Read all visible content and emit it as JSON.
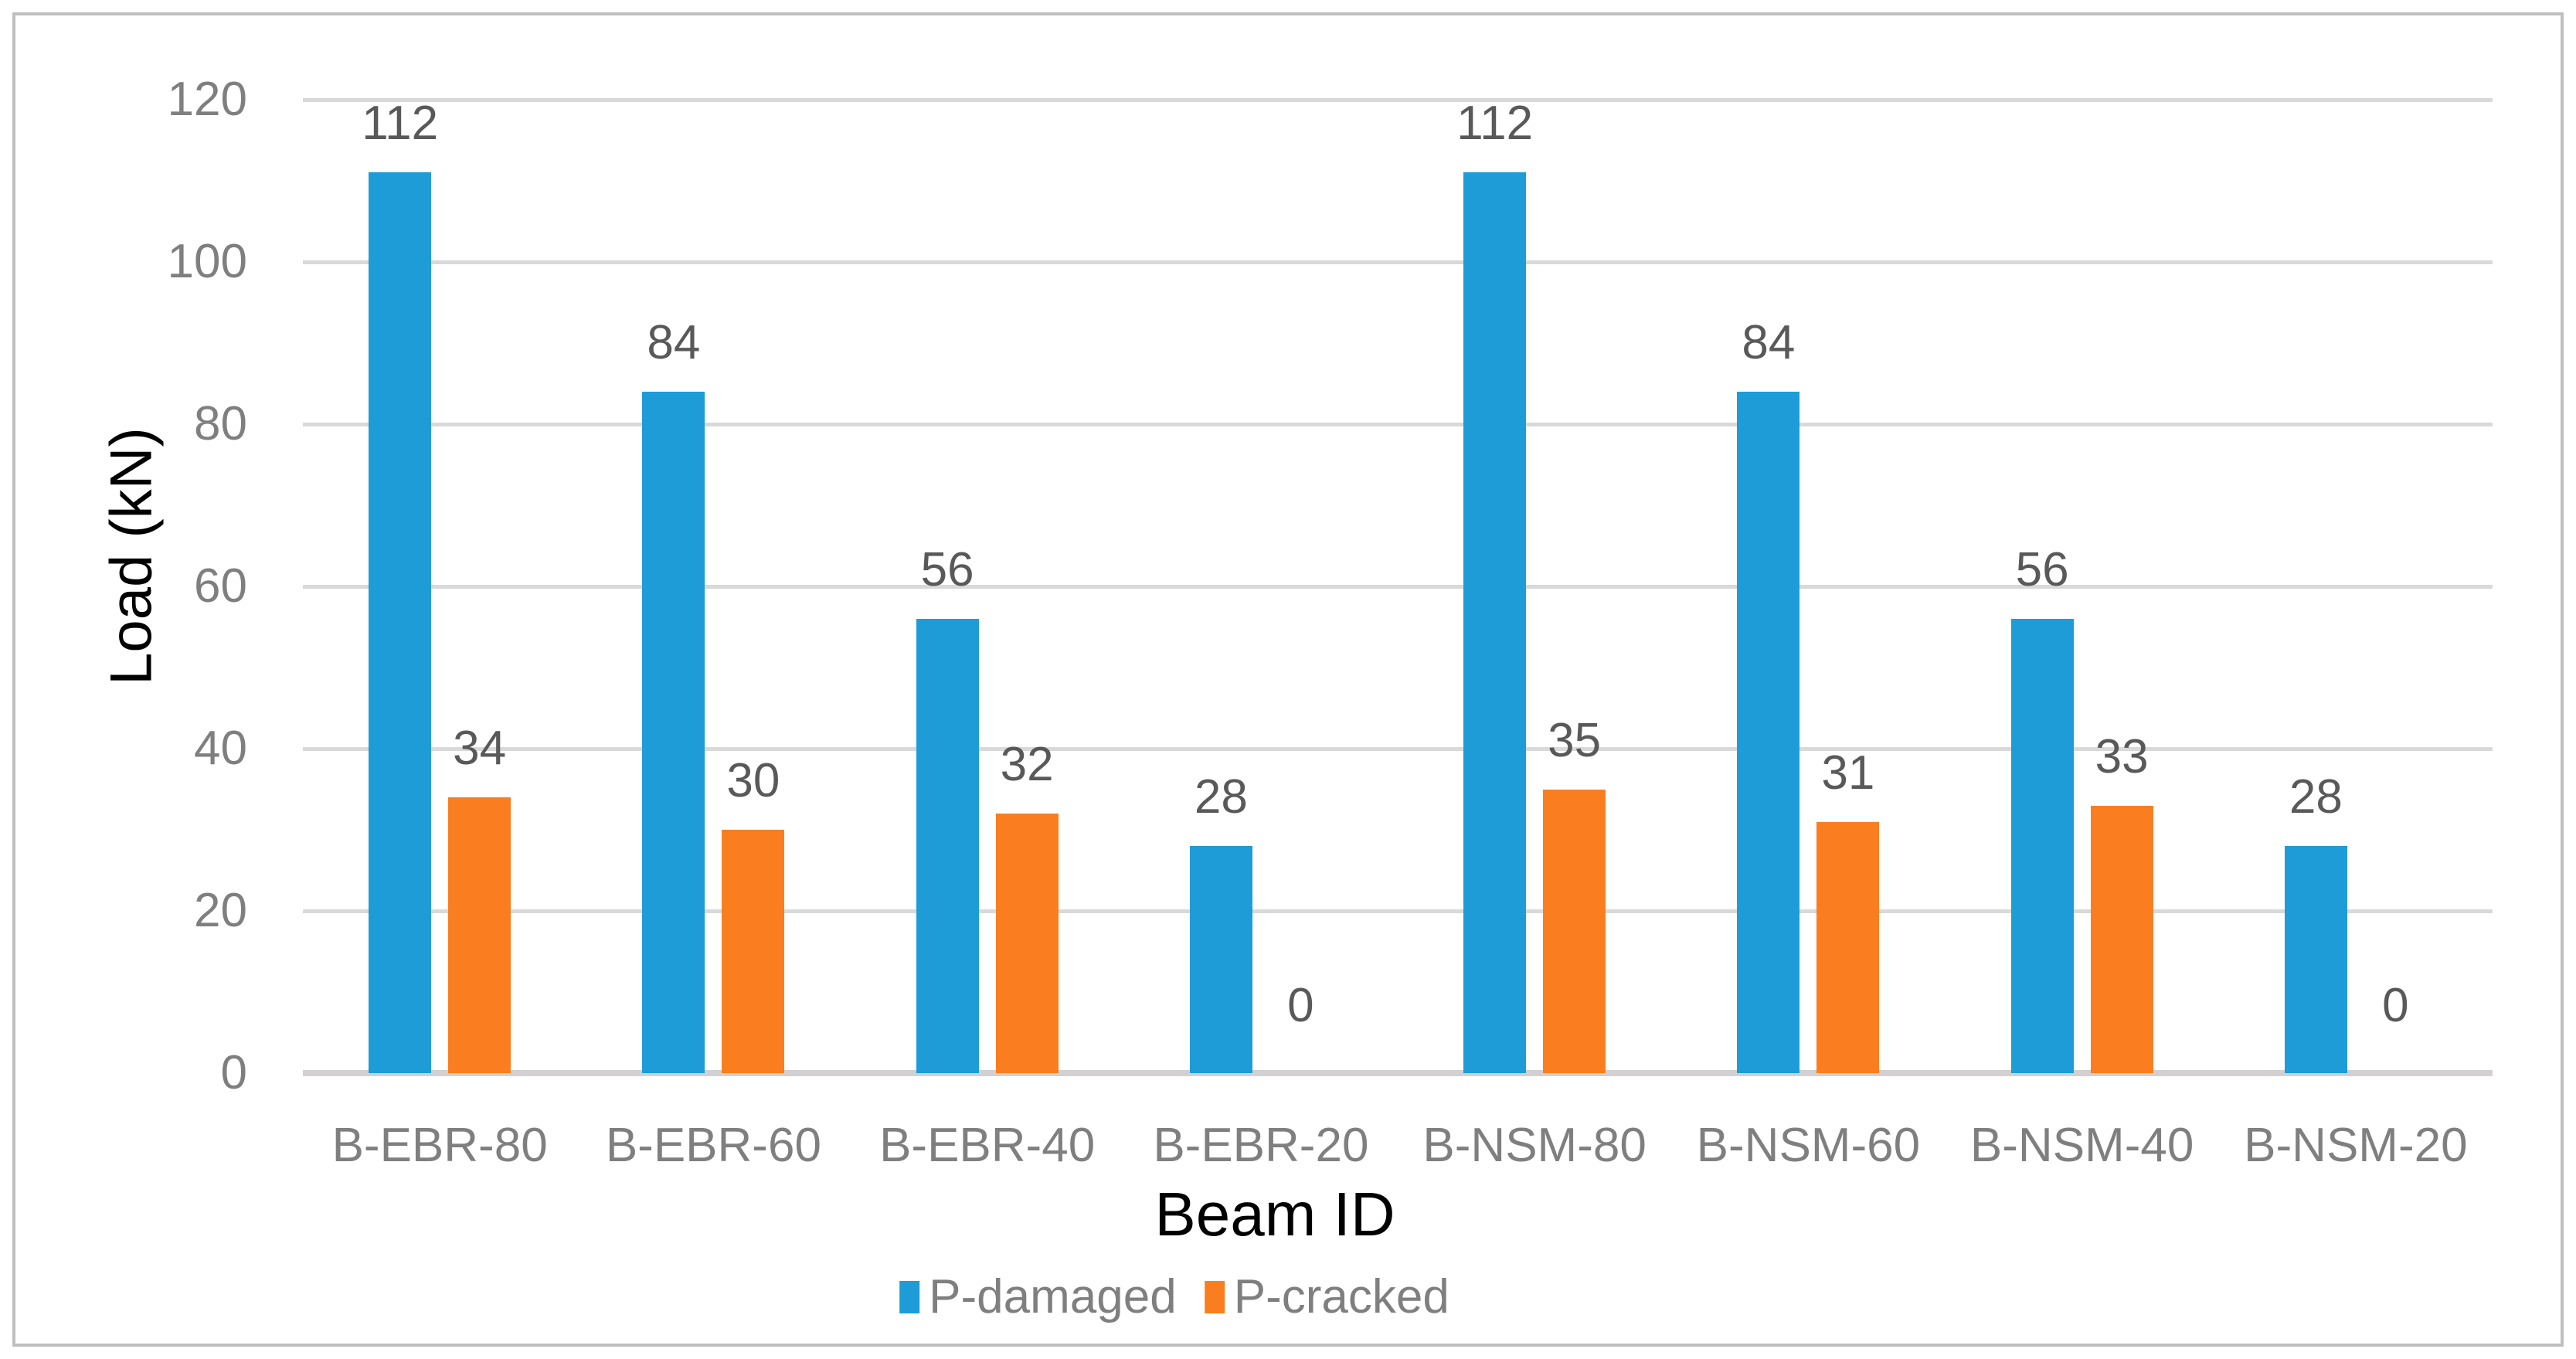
{
  "chart_data": {
    "type": "bar",
    "title": "",
    "xlabel": "Beam ID",
    "ylabel": "Load (kN)",
    "categories": [
      "B-EBR-80",
      "B-EBR-60",
      "B-EBR-40",
      "B-EBR-20",
      "B-NSM-80",
      "B-NSM-60",
      "B-NSM-40",
      "B-NSM-20"
    ],
    "series": [
      {
        "name": "P-damaged",
        "color": "#1E9CD7",
        "values": [
          112,
          84,
          56,
          28,
          112,
          84,
          56,
          28
        ]
      },
      {
        "name": "P-cracked",
        "color": "#FA7E20",
        "values": [
          34,
          30,
          32,
          0,
          35,
          31,
          33,
          0
        ]
      }
    ],
    "ylim": [
      0,
      120
    ],
    "yticks": [
      0,
      20,
      40,
      60,
      80,
      100,
      120
    ],
    "grid": "horizontal",
    "legend_position": "bottom",
    "data_labels": true
  },
  "colors": {
    "frame_border": "#BFBFBF",
    "gridline": "#D9D9D9",
    "axis_line": "#D2D0D0",
    "tick_label_text": "#7F7F7F",
    "data_label_text": "#595959",
    "axis_title_text": "#000000",
    "background": "#FFFFFF"
  }
}
